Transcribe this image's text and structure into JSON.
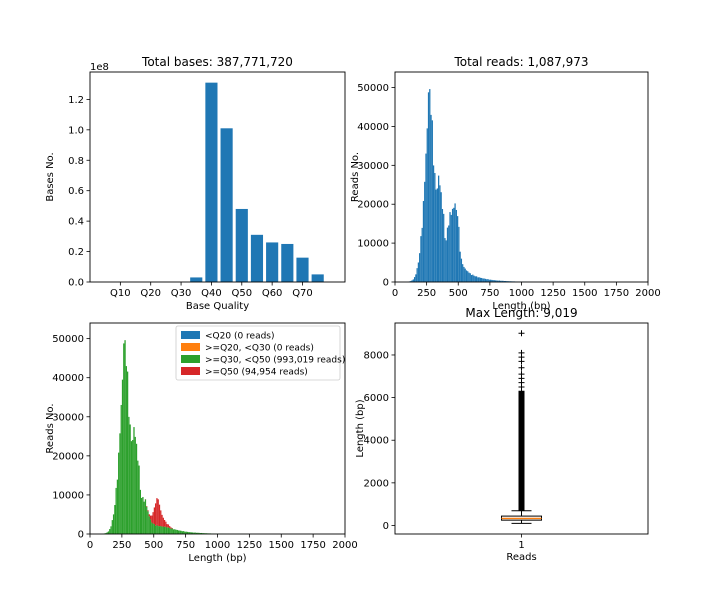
{
  "colors": {
    "blue": "#1f77b4",
    "orange": "#ff7f0e",
    "green": "#2ca02c",
    "red": "#d62728",
    "box": "#ff7f0e"
  },
  "chart_data": [
    {
      "id": "bases",
      "type": "bar",
      "title": "Total bases: 387,771,720",
      "xlabel": "Base Quality",
      "ylabel": "Bases No.",
      "offset_label": "1e8",
      "ylim": [
        0,
        1.38
      ],
      "yticks": [
        0.0,
        0.2,
        0.4,
        0.6,
        0.8,
        1.0,
        1.2
      ],
      "ytick_labels": [
        "0.0",
        "0.2",
        "0.4",
        "0.6",
        "0.8",
        "1.0",
        "1.2"
      ],
      "xlim": [
        0,
        84
      ],
      "xticks": [
        10,
        20,
        30,
        40,
        50,
        60,
        70
      ],
      "xtick_labels": [
        "Q10",
        "Q20",
        "Q30",
        "Q40",
        "Q50",
        "Q60",
        "Q70"
      ],
      "bar_width": 4,
      "bars": [
        {
          "x": 35,
          "value": 0.03
        },
        {
          "x": 40,
          "value": 1.31
        },
        {
          "x": 45,
          "value": 1.01
        },
        {
          "x": 50,
          "value": 0.48
        },
        {
          "x": 55,
          "value": 0.31
        },
        {
          "x": 60,
          "value": 0.26
        },
        {
          "x": 65,
          "value": 0.25
        },
        {
          "x": 70,
          "value": 0.16
        },
        {
          "x": 75,
          "value": 0.05
        }
      ]
    },
    {
      "id": "reads",
      "type": "bar",
      "title": "Total reads: 1,087,973",
      "xlabel": "Length (bp)",
      "ylabel": "Reads No.",
      "xlim": [
        0,
        2000
      ],
      "xticks": [
        0,
        250,
        500,
        750,
        1000,
        1250,
        1500,
        1750,
        2000
      ],
      "ylim": [
        0,
        54000
      ],
      "yticks": [
        0,
        10000,
        20000,
        30000,
        40000,
        50000
      ],
      "bin_width": 10,
      "profile_x": [
        100,
        130,
        150,
        170,
        190,
        205,
        220,
        235,
        245,
        255,
        262,
        270,
        280,
        290,
        300,
        310,
        320,
        330,
        340,
        350,
        360,
        370,
        380,
        390,
        400,
        420,
        440,
        460,
        480,
        500,
        520,
        550,
        600,
        650,
        700,
        750,
        800,
        900,
        1000,
        1100,
        1200,
        1350,
        1500
      ],
      "profile_y": [
        0,
        300,
        800,
        2500,
        6000,
        11000,
        17000,
        26000,
        33000,
        40000,
        46000,
        51000,
        48000,
        42000,
        35000,
        30000,
        24000,
        23000,
        27000,
        26000,
        24500,
        21000,
        18000,
        15000,
        9000,
        15000,
        17500,
        19000,
        20000,
        16000,
        6000,
        3500,
        2000,
        1300,
        900,
        600,
        400,
        200,
        80,
        30,
        15,
        5,
        0
      ]
    },
    {
      "id": "quality-hist",
      "type": "bar",
      "title": "",
      "xlabel": "Length (bp)",
      "ylabel": "Reads No.",
      "xlim": [
        0,
        2000
      ],
      "xticks": [
        0,
        250,
        500,
        750,
        1000,
        1250,
        1500,
        1750,
        2000
      ],
      "ylim": [
        0,
        54000
      ],
      "yticks": [
        0,
        10000,
        20000,
        30000,
        40000,
        50000
      ],
      "bin_width": 10,
      "legend": [
        {
          "label": "<Q20 (0 reads)",
          "color": "#1f77b4"
        },
        {
          "label": ">=Q20, <Q30 (0 reads)",
          "color": "#ff7f0e"
        },
        {
          "label": ">=Q30, <Q50 (993,019 reads)",
          "color": "#2ca02c"
        },
        {
          "label": ">=Q50 (94,954 reads)",
          "color": "#d62728"
        }
      ],
      "green_x": [
        100,
        130,
        150,
        170,
        190,
        205,
        220,
        235,
        245,
        255,
        262,
        270,
        280,
        290,
        300,
        310,
        320,
        330,
        340,
        350,
        360,
        370,
        380,
        390,
        400,
        420,
        440,
        460,
        480,
        500,
        520,
        550,
        600,
        650,
        700,
        750,
        800,
        900,
        1000,
        1100,
        1200,
        1350,
        1500
      ],
      "green_y": [
        0,
        300,
        800,
        2500,
        6000,
        11000,
        17000,
        26000,
        33000,
        40000,
        46000,
        51000,
        48000,
        42000,
        35000,
        30000,
        24000,
        23000,
        27000,
        26000,
        24500,
        21000,
        18000,
        15000,
        9000,
        9200,
        8000,
        5000,
        3200,
        2500,
        2200,
        2000,
        1800,
        1300,
        900,
        600,
        400,
        200,
        80,
        30,
        15,
        5,
        0
      ],
      "red_x": [
        430,
        460,
        480,
        500,
        520,
        530,
        540,
        550,
        570,
        600,
        650
      ],
      "red_y": [
        0,
        300,
        1200,
        3500,
        6500,
        7200,
        6500,
        4500,
        2500,
        1000,
        0
      ]
    },
    {
      "id": "length-box",
      "type": "box",
      "title": "Max Length: 9,019",
      "xlabel": "Reads",
      "ylabel": "Length (bp)",
      "ylim": [
        -400,
        9500
      ],
      "yticks": [
        0,
        2000,
        4000,
        6000,
        8000
      ],
      "xtick_label": "1",
      "whisker_low": 100,
      "q1": 250,
      "median": 330,
      "q3": 440,
      "whisker_high": 690,
      "fliers": [
        750,
        800,
        900,
        1000,
        1150,
        1300,
        1500,
        1700,
        2000,
        2300,
        2600,
        2900,
        3200,
        3500,
        3800,
        4100,
        4400,
        4700,
        5000,
        5300,
        5600,
        5900,
        6100,
        6300,
        6500,
        6700,
        6900,
        7100,
        7400,
        7700,
        7900,
        8100,
        9019
      ]
    }
  ]
}
